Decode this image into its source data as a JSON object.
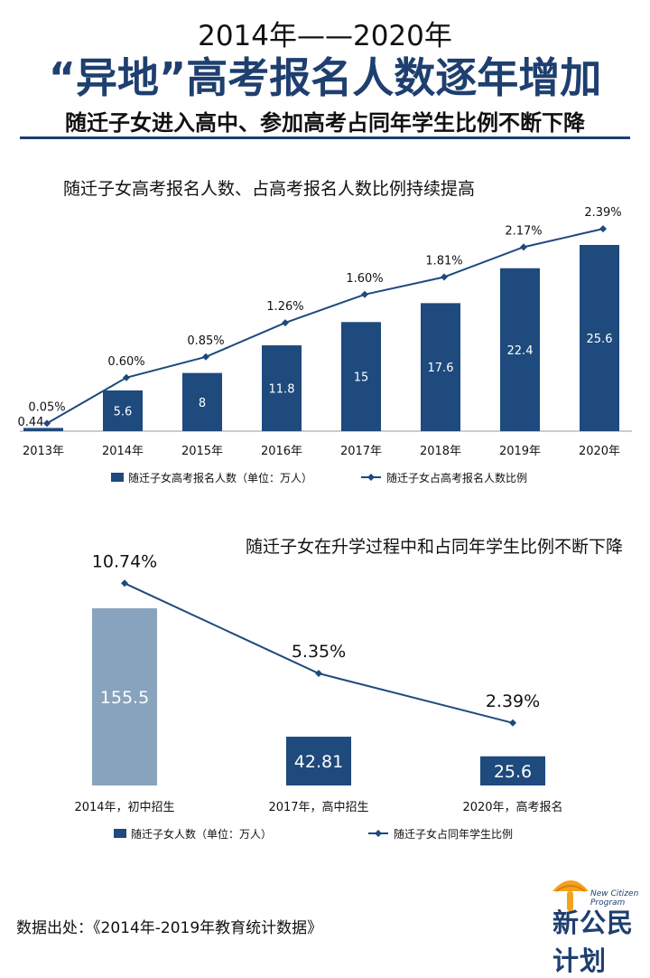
{
  "header": {
    "line1": "2014年——2020年",
    "line2": "“异地”高考报名人数逐年增加",
    "line3": "随迁子女进入高中、参加高考占同年学生比例不断下降"
  },
  "colors": {
    "bar": "#1e4a7d",
    "bar_light": "#88a3bd",
    "line": "#1e4a7d",
    "accent": "#f3a21d"
  },
  "chart_data": [
    {
      "type": "bar",
      "title": "随迁子女高考报名人数、占高考报名人数比例持续提高",
      "categories": [
        "2013年",
        "2014年",
        "2015年",
        "2016年",
        "2017年",
        "2018年",
        "2019年",
        "2020年"
      ],
      "series": [
        {
          "name": "随迁子女高考报名人数（单位：万人）",
          "kind": "bar",
          "values": [
            0.44,
            5.6,
            8,
            11.8,
            15,
            17.6,
            22.4,
            25.6
          ],
          "labels": [
            "0.44",
            "5.6",
            "8",
            "11.8",
            "15",
            "17.6",
            "22.4",
            "25.6"
          ]
        },
        {
          "name": "随迁子女占高考报名人数比例",
          "kind": "line",
          "values": [
            0.05,
            0.6,
            0.85,
            1.26,
            1.6,
            1.81,
            2.17,
            2.39
          ],
          "labels": [
            "0.05%",
            "0.60%",
            "0.85%",
            "1.26%",
            "1.60%",
            "1.81%",
            "2.17%",
            "2.39%"
          ]
        }
      ],
      "legend": "bottom",
      "grid": false
    },
    {
      "type": "bar",
      "title": "随迁子女在升学过程中和占同年学生比例不断下降",
      "categories": [
        "2014年，初中招生",
        "2017年，高中招生",
        "2020年，高考报名"
      ],
      "series": [
        {
          "name": "随迁子女人数（单位：万人）",
          "kind": "bar",
          "values": [
            155.5,
            42.81,
            25.6
          ],
          "labels": [
            "155.5",
            "42.81",
            "25.6"
          ]
        },
        {
          "name": "随迁子女占同年学生比例",
          "kind": "line",
          "values": [
            10.74,
            5.35,
            2.39
          ],
          "labels": [
            "10.74%",
            "5.35%",
            "2.39%"
          ]
        }
      ],
      "legend": "bottom",
      "grid": false
    }
  ],
  "source": "数据出处：《2014年-2019年教育统计数据》",
  "logo": {
    "en": "New Citizen Program",
    "cn": "新公民计划"
  }
}
